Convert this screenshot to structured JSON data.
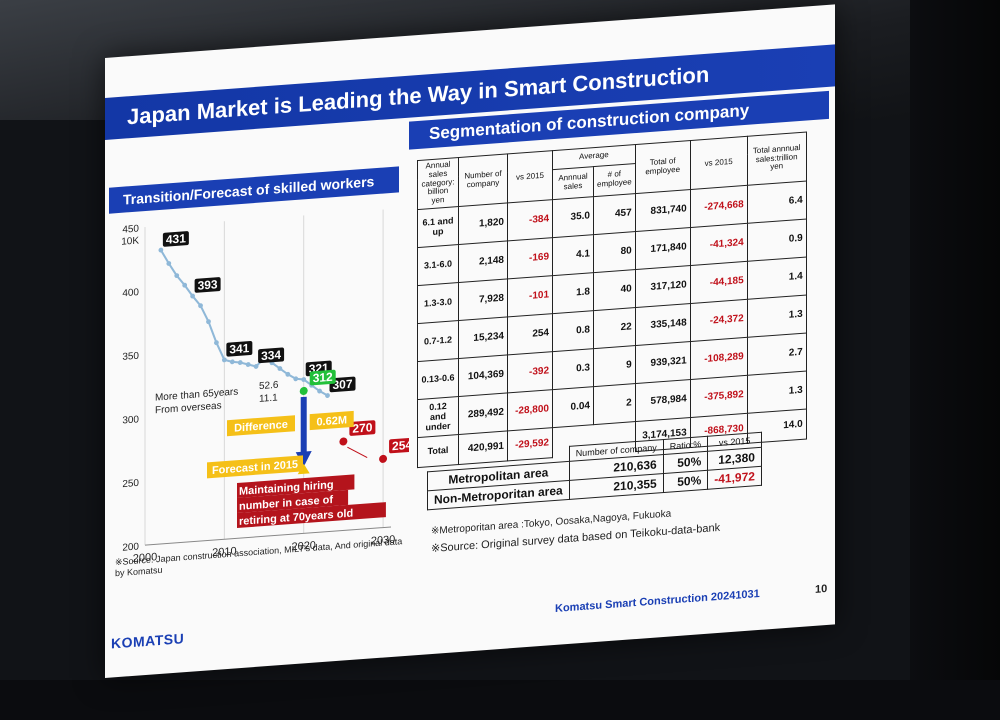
{
  "slide": {
    "title": "Japan Market is Leading the Way in Smart Construction",
    "segmentation_title": "Segmentation of construction company",
    "chart_title": "Transition/Forecast of skilled workers",
    "logo": "KOMATSU",
    "footer": "Komatsu Smart Construction 20241031",
    "page_number": "10"
  },
  "chart_data": {
    "type": "line",
    "unit_label": "10K",
    "x_ticks": [
      "2000",
      "2010",
      "2020",
      "2030"
    ],
    "y_ticks": [
      "200",
      "250",
      "300",
      "350",
      "400",
      "450"
    ],
    "xlim": [
      2000,
      2031
    ],
    "ylim": [
      200,
      450
    ],
    "series": [
      {
        "x": [
          2002,
          2003,
          2004,
          2005,
          2006,
          2007,
          2008,
          2009,
          2010,
          2011,
          2012,
          2013,
          2014,
          2015,
          2016,
          2017,
          2018,
          2019,
          2020,
          2021,
          2022,
          2023
        ],
        "y": [
          431,
          420,
          410,
          402,
          393,
          385,
          372,
          355,
          341,
          339,
          338,
          336,
          334,
          340,
          336,
          331,
          326,
          322,
          321,
          316,
          311,
          307
        ]
      }
    ],
    "labels": [
      {
        "text": "431",
        "x": 2002,
        "y": 431
      },
      {
        "text": "393",
        "x": 2006,
        "y": 393
      },
      {
        "text": "341",
        "x": 2010,
        "y": 341
      },
      {
        "text": "334",
        "x": 2014,
        "y": 334
      },
      {
        "text": "321",
        "x": 2020,
        "y": 321
      },
      {
        "text": "307",
        "x": 2023,
        "y": 307
      }
    ],
    "markers": [
      {
        "text": "312",
        "x": 2020,
        "y": 312,
        "color": "#22c03a"
      },
      {
        "text": "270",
        "x": 2025,
        "y": 270,
        "color": "#c0101a"
      },
      {
        "text": "254",
        "x": 2030,
        "y": 254,
        "color": "#c0101a"
      }
    ],
    "annotations": {
      "over65_label": "More than 65years",
      "over65_value": "52.6",
      "overseas_label": "From overseas",
      "overseas_value": "11.1",
      "difference_label": "Difference",
      "difference_value": "0.62M",
      "forecast_label": "Forecast in 2015",
      "maintain_note": "Maintaining hiring number in case of retiring at 70years old"
    },
    "source": "※Source: Japan construction association, MILT's data, And original data by Komatsu"
  },
  "segmentation": {
    "headers": {
      "category": "Annual sales category: billion yen",
      "companies": "Number of company",
      "vs2015": "vs 2015",
      "average": "Average",
      "annual_sales": "Annnual sales",
      "employee_avg": "# of employee",
      "total_employee": "Total of employee",
      "vs2015_emp": "vs 2015",
      "total_sales": "Total annnual sales:trillion yen"
    },
    "rows": [
      {
        "category": "6.1 and up",
        "companies": "1,820",
        "vs2015": "-384",
        "avg_sales": "35.0",
        "avg_emp": "457",
        "total_emp": "831,740",
        "vs2015_emp": "-274,668",
        "total_sales": "6.4"
      },
      {
        "category": "3.1-6.0",
        "companies": "2,148",
        "vs2015": "-169",
        "avg_sales": "4.1",
        "avg_emp": "80",
        "total_emp": "171,840",
        "vs2015_emp": "-41,324",
        "total_sales": "0.9"
      },
      {
        "category": "1.3-3.0",
        "companies": "7,928",
        "vs2015": "-101",
        "avg_sales": "1.8",
        "avg_emp": "40",
        "total_emp": "317,120",
        "vs2015_emp": "-44,185",
        "total_sales": "1.4"
      },
      {
        "category": "0.7-1.2",
        "companies": "15,234",
        "vs2015": "254",
        "avg_sales": "0.8",
        "avg_emp": "22",
        "total_emp": "335,148",
        "vs2015_emp": "-24,372",
        "total_sales": "1.3"
      },
      {
        "category": "0.13-0.6",
        "companies": "104,369",
        "vs2015": "-392",
        "avg_sales": "0.3",
        "avg_emp": "9",
        "total_emp": "939,321",
        "vs2015_emp": "-108,289",
        "total_sales": "2.7"
      },
      {
        "category": "0.12 and under",
        "companies": "289,492",
        "vs2015": "-28,800",
        "avg_sales": "0.04",
        "avg_emp": "2",
        "total_emp": "578,984",
        "vs2015_emp": "-375,892",
        "total_sales": "1.3"
      }
    ],
    "total": {
      "category": "Total",
      "companies": "420,991",
      "vs2015": "-29,592",
      "total_emp": "3,174,153",
      "vs2015_emp": "-868,730",
      "total_sales": "14.0"
    }
  },
  "metro": {
    "headers": {
      "companies": "Number of company",
      "ratio": "Ratio:%",
      "vs2015": "vs 2015"
    },
    "rows": [
      {
        "area": "Metropolitan area",
        "companies": "210,636",
        "ratio": "50%",
        "vs2015": "12,380"
      },
      {
        "area": "Non-Metroporitan area",
        "companies": "210,355",
        "ratio": "50%",
        "vs2015": "-41,972"
      }
    ],
    "note1": "※Metroporitan area :Tokyo, Oosaka,Nagoya, Fukuoka",
    "note2": "※Source: Original survey data based on Teikoku-data-bank"
  }
}
